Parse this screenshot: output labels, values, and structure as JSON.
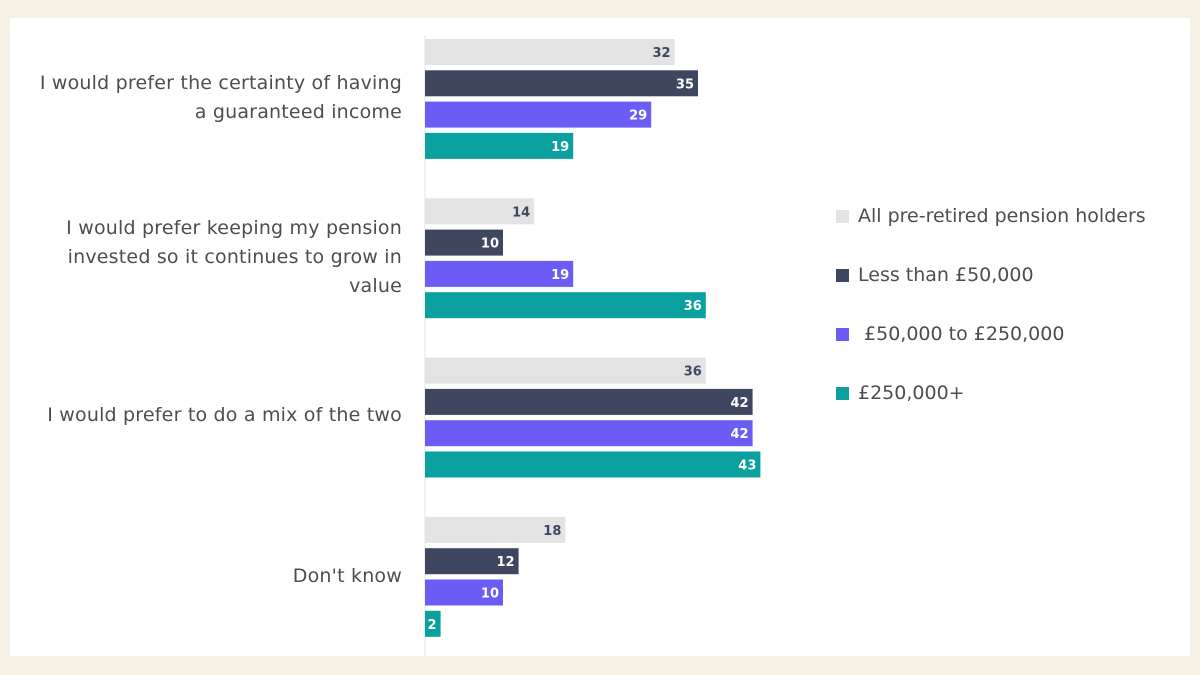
{
  "chart_data": {
    "type": "bar",
    "orientation": "horizontal",
    "categories": [
      "I would prefer the certainty of having a guaranteed income",
      "I would prefer keeping my pension invested so it continues to grow in value",
      "I would prefer to do a mix of the two",
      "Don't know"
    ],
    "series": [
      {
        "name": "All pre-retired pension holders",
        "color": "#e3e3e3",
        "label_color": "#3f4660",
        "values": [
          32,
          14,
          36,
          18
        ]
      },
      {
        "name": "Less than £50,000",
        "color": "#3f4660",
        "label_color": "#ffffff",
        "values": [
          35,
          10,
          42,
          12
        ]
      },
      {
        "name": " £50,000 to £250,000",
        "color": "#6b5cf6",
        "label_color": "#ffffff",
        "values": [
          29,
          19,
          42,
          10
        ]
      },
      {
        "name": "£250,000+",
        "color": "#0aa0a0",
        "label_color": "#ffffff",
        "values": [
          19,
          36,
          43,
          2
        ]
      }
    ],
    "title": "",
    "xlabel": "",
    "ylabel": "",
    "xlim": [
      0,
      100
    ],
    "grid": false,
    "legend_position": "right"
  }
}
